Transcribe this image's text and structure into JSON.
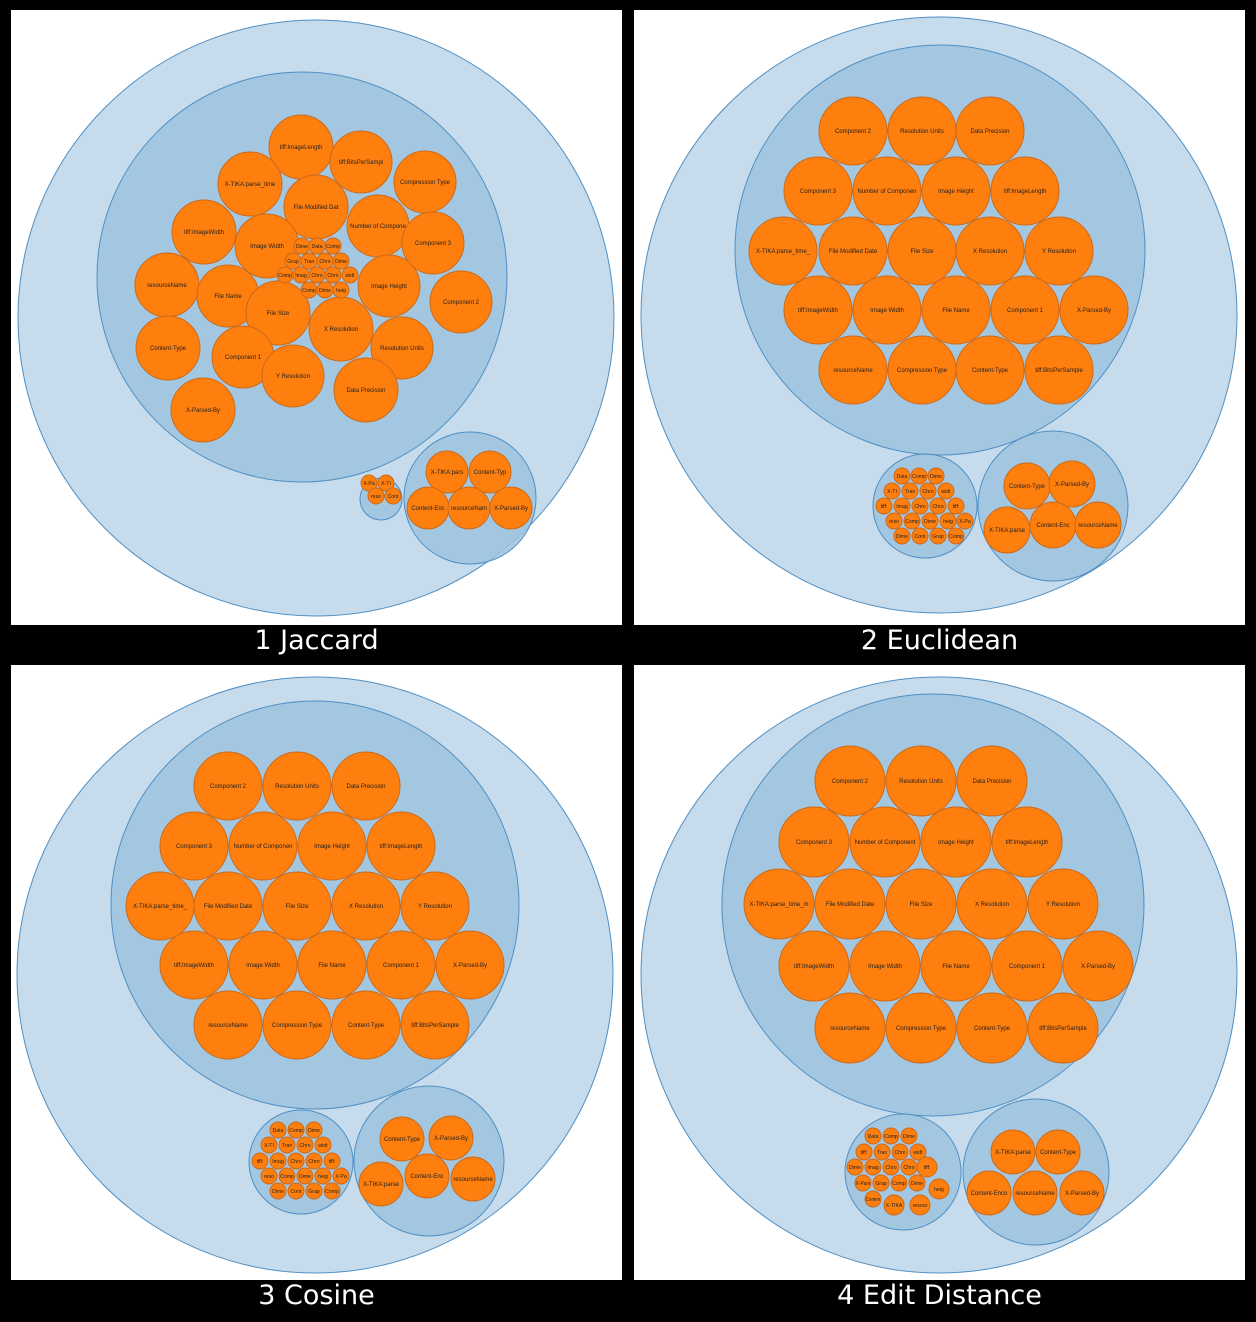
{
  "colors": {
    "outer": "#c6dcec",
    "middle": "#9dc3df",
    "stroke": "#4f8fc4",
    "leaf": "#ff7f0e",
    "leafStroke": "#c96a1c"
  },
  "panels": [
    {
      "caption": "1 Jaccard",
      "labels": [
        "tiff:ImageLength",
        "tiff:BitsPerSampl",
        "X-TIKA:parse_time",
        "Compression Type",
        "File Modified Dat",
        "Number of Compone",
        "tiff:ImageWidth",
        "Image Width",
        "Component 3",
        "resourceName",
        "File Name",
        "Image Height",
        "Component 2",
        "File Size",
        "X Resolution",
        "Content-Type",
        "Component 1",
        "Resolution Units",
        "Y Resolution",
        "Data Precision",
        "X-Parsed-By",
        "Dime",
        "Data",
        "Comp",
        "Grap",
        "Tran",
        "Chro",
        "Dime",
        "Comp",
        "Imag",
        "Chro",
        "Chro",
        "widt",
        "Comp",
        "Dime",
        "heig"
      ],
      "smallLabels": [
        "X-Pa",
        "X-TI",
        "reso",
        "Cont"
      ],
      "rightLabels": [
        "X-TIKA:pars",
        "Content-Typ",
        "Content-Enc",
        "resourceNam",
        "X-Parsed-By"
      ]
    },
    {
      "caption": "2 Euclidean",
      "labels": [
        "Component 2",
        "Resolution Units",
        "Data Precision",
        "Component 3",
        "Number of Componen",
        "Image Height",
        "tiff:ImageLength",
        "X-TIKA:parse_time_",
        "File Modified Date",
        "File Size",
        "X Resolution",
        "Y Resolution",
        "tiff:ImageWidth",
        "Image Width",
        "File Name",
        "Component 1",
        "X-Parsed-By",
        "resourceName",
        "Compression Type",
        "Content-Type",
        "tiff:BitsPerSample"
      ],
      "smallLabels": [
        "Data",
        "Comp",
        "Dime",
        "X-TI",
        "Tran",
        "Chro",
        "widt",
        "tiff:",
        "Imag",
        "Chro",
        "Chro",
        "tiff:",
        "reso",
        "Comp",
        "Dime",
        "heig",
        "X-Pa",
        "Dime",
        "Cont",
        "Grap",
        "Comp"
      ],
      "rightLabels": [
        "Content-Type",
        "X-Parsed-By",
        "X-TIKA:parse",
        "Content-Enc",
        "resourceName"
      ]
    },
    {
      "caption": "3 Cosine",
      "labels": [
        "Component 2",
        "Resolution Units",
        "Data Precision",
        "Component 3",
        "Number of Componen",
        "Image Height",
        "tiff:ImageLength",
        "X-TIKA:parse_time_",
        "File Modified Date",
        "File Size",
        "X Resolution",
        "Y Resolution",
        "tiff:ImageWidth",
        "Image Width",
        "File Name",
        "Component 1",
        "X-Parsed-By",
        "resourceName",
        "Compression Type",
        "Content-Type",
        "tiff:BitsPerSample"
      ],
      "smallLabels": [
        "Data",
        "Comp",
        "Dime",
        "X-TI",
        "Tran",
        "Chro",
        "widt",
        "tiff:",
        "Imag",
        "Chro",
        "Chro",
        "tiff:",
        "reso",
        "Comp",
        "Dime",
        "heig",
        "X-Pa",
        "Dime",
        "Cont",
        "Grap",
        "Comp"
      ],
      "rightLabels": [
        "Content-Type",
        "X-Parsed-By",
        "X-TIKA:parse",
        "Content-Enc",
        "resourceName"
      ]
    },
    {
      "caption": "4 Edit Distance",
      "labels": [
        "Component 2",
        "Resolution Units",
        "Data Precision",
        "Component 3",
        "Number of Component",
        "Image Height",
        "tiff:ImageLength",
        "X-TIKA:parse_time_m",
        "File Modified Date",
        "File Size",
        "X Resolution",
        "Y Resolution",
        "tiff:ImageWidth",
        "Image Width",
        "File Name",
        "Component 1",
        "X-Parsed-By",
        "resourceName",
        "Compression Type",
        "Content-Type",
        "tiff:BitsPerSample"
      ],
      "smallLabels": [
        "Data",
        "Comp",
        "Dime",
        "tiff:",
        "Tran",
        "Chro",
        "widt",
        "Dime",
        "Imag",
        "Chro",
        "Chro",
        "tiff:",
        "X-Pars",
        "Grap",
        "Comp",
        "Dime",
        "heig",
        "Conten",
        "Comp",
        "X-TIKA",
        "resour"
      ],
      "rightLabels": [
        "X-TIKA:parse",
        "Content-Type",
        "Content-Enco",
        "resourceName",
        "X-Parsed-By"
      ]
    }
  ]
}
